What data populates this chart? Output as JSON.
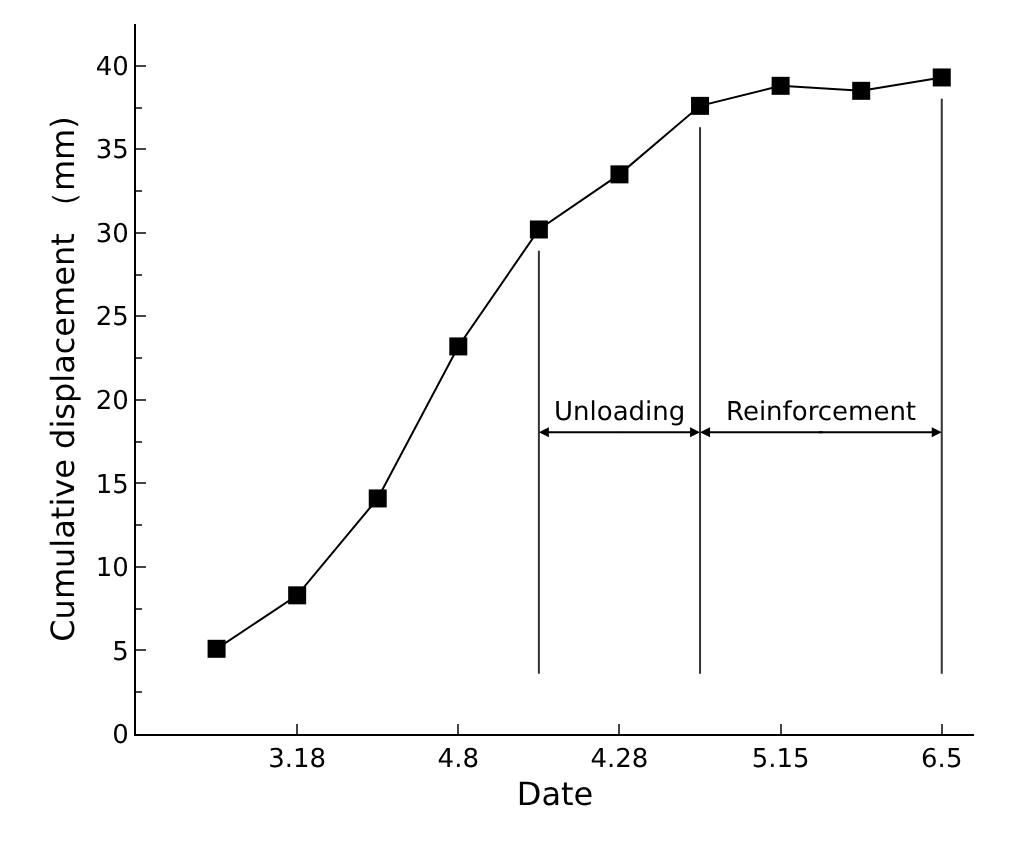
{
  "chart_data": {
    "type": "line",
    "xlabel": "Date",
    "ylabel": "Cumulative displacement （mm)",
    "categories": [
      null,
      "3.18",
      null,
      "4.8",
      null,
      "4.28",
      null,
      "5.15",
      null,
      "6.5"
    ],
    "values": [
      5.1,
      8.3,
      14.1,
      23.2,
      30.2,
      33.5,
      37.6,
      38.8,
      38.5,
      39.3
    ],
    "color": "#000000",
    "marker": "square",
    "line_style": "solid",
    "ylim": [
      0,
      42.5
    ],
    "yticks": [
      0,
      5,
      10,
      15,
      20,
      25,
      30,
      35,
      40
    ],
    "annotations": [
      "Unloading",
      "Reinforcement"
    ]
  }
}
